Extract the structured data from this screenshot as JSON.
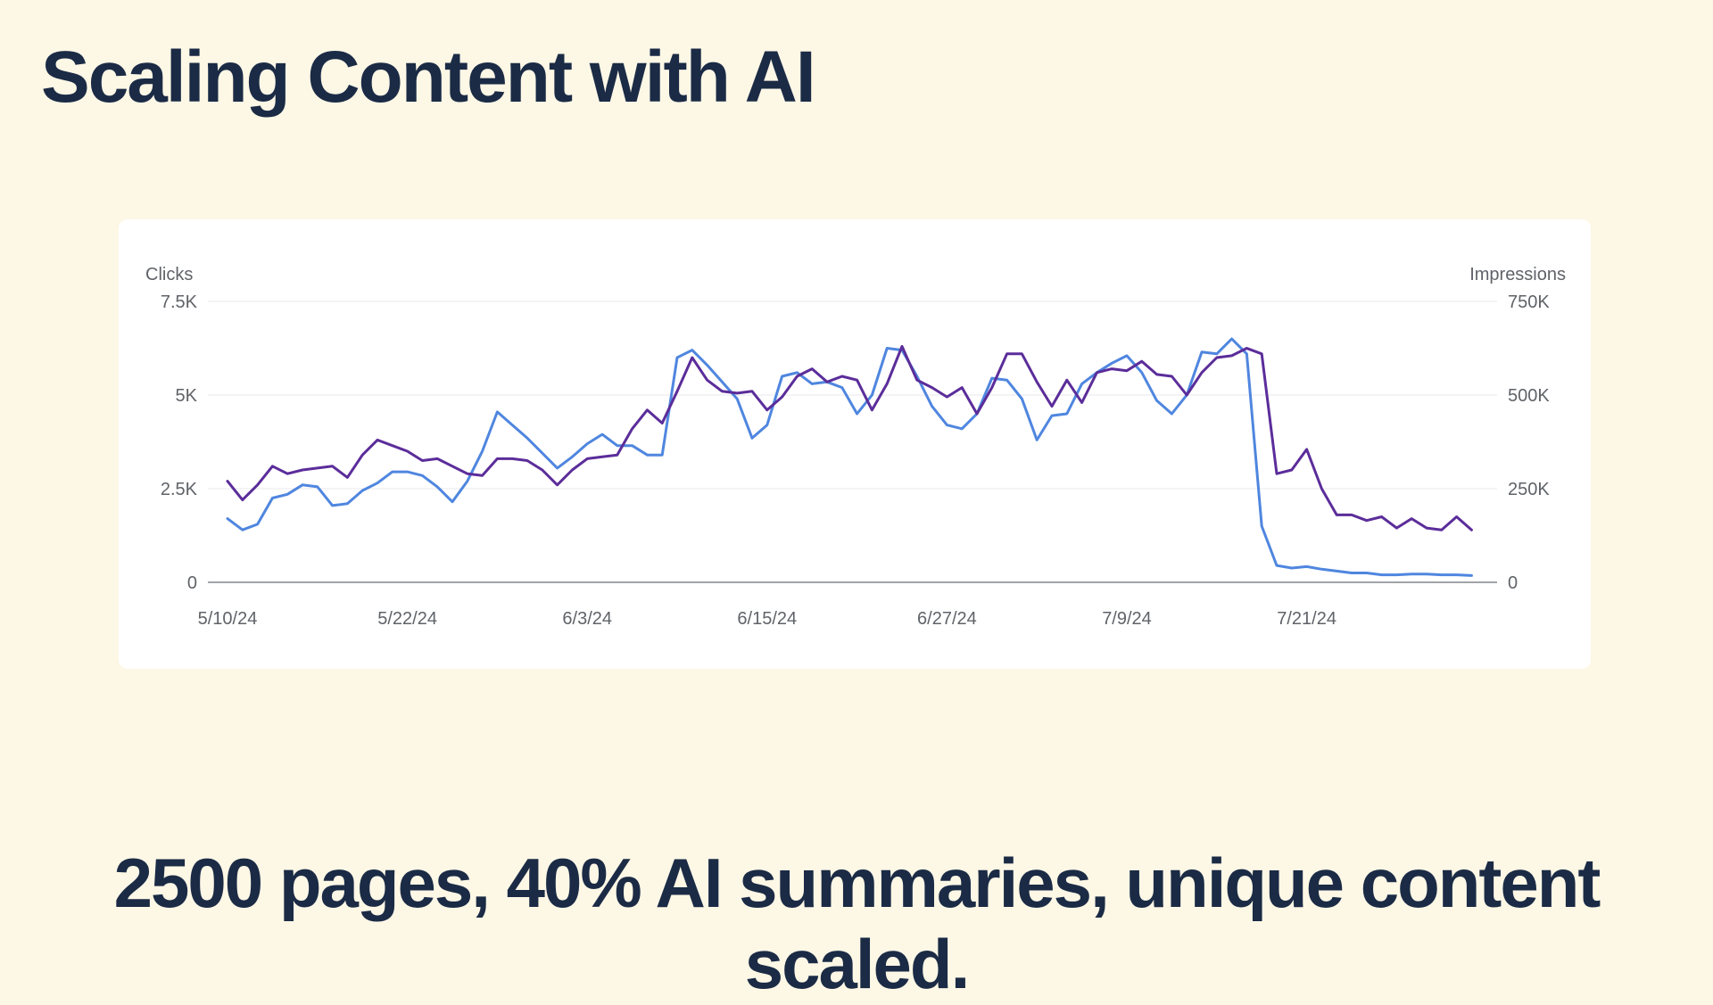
{
  "slide": {
    "title": "Scaling Content with AI",
    "caption": "2500 pages, 40% AI summaries, unique content scaled."
  },
  "colors": {
    "background": "#fdf7e6",
    "text": "#1b2b45",
    "clicks": "#5b2d9a",
    "impressions": "#4f86df"
  },
  "chart_data": {
    "type": "line",
    "left_axis_label": "Clicks",
    "right_axis_label": "Impressions",
    "left_ticks": [
      "0",
      "2.5K",
      "5K",
      "7.5K"
    ],
    "right_ticks": [
      "0",
      "250K",
      "500K",
      "750K"
    ],
    "x_tick_labels": [
      "5/10/24",
      "5/22/24",
      "6/3/24",
      "6/15/24",
      "6/27/24",
      "7/9/24",
      "7/21/24"
    ],
    "x_range": [
      "5/10/24",
      "8/1/24"
    ],
    "ylim_left": [
      0,
      7500
    ],
    "ylim_right": [
      0,
      750000
    ],
    "grid": true,
    "legend": "none",
    "series": [
      {
        "axis": "left",
        "values": [
          2700,
          2200,
          2600,
          3100,
          2900,
          3000,
          3050,
          3100,
          2800,
          3400,
          3800,
          3650,
          3500,
          3250,
          3300,
          3100,
          2900,
          2850,
          3300,
          3300,
          3250,
          3000,
          2600,
          3000,
          3300,
          3350,
          3400,
          4100,
          4600,
          4250,
          5100,
          6000,
          5400,
          5100,
          5050,
          5100,
          4600,
          4950,
          5500,
          5700,
          5350,
          5500,
          5400,
          4600,
          5300,
          6300,
          5400,
          5200,
          4950,
          5200,
          4500,
          5200,
          6100,
          6100,
          5350,
          4700,
          5400,
          4800,
          5600,
          5700,
          5650,
          5900,
          5550,
          5500,
          5000,
          5600,
          6000,
          6050,
          6250,
          6100,
          2900,
          3000,
          3550,
          2500,
          1800,
          1800,
          1650,
          1750,
          1450,
          1700,
          1450,
          1400,
          1750,
          1400
        ]
      },
      {
        "axis": "right",
        "values": [
          170000,
          140000,
          155000,
          225000,
          235000,
          260000,
          255000,
          205000,
          210000,
          245000,
          265000,
          295000,
          295000,
          285000,
          255000,
          215000,
          270000,
          350000,
          455000,
          420000,
          385000,
          345000,
          305000,
          335000,
          370000,
          395000,
          365000,
          365000,
          340000,
          340000,
          600000,
          620000,
          580000,
          535000,
          490000,
          385000,
          420000,
          550000,
          560000,
          530000,
          535000,
          520000,
          450000,
          500000,
          625000,
          620000,
          550000,
          470000,
          420000,
          410000,
          450000,
          545000,
          540000,
          490000,
          380000,
          445000,
          450000,
          530000,
          560000,
          585000,
          605000,
          560000,
          485000,
          450000,
          500000,
          615000,
          610000,
          650000,
          610000,
          150000,
          45000,
          38000,
          42000,
          35000,
          30000,
          25000,
          25000,
          20000,
          20000,
          22000,
          22000,
          20000,
          20000,
          18000
        ]
      }
    ]
  }
}
